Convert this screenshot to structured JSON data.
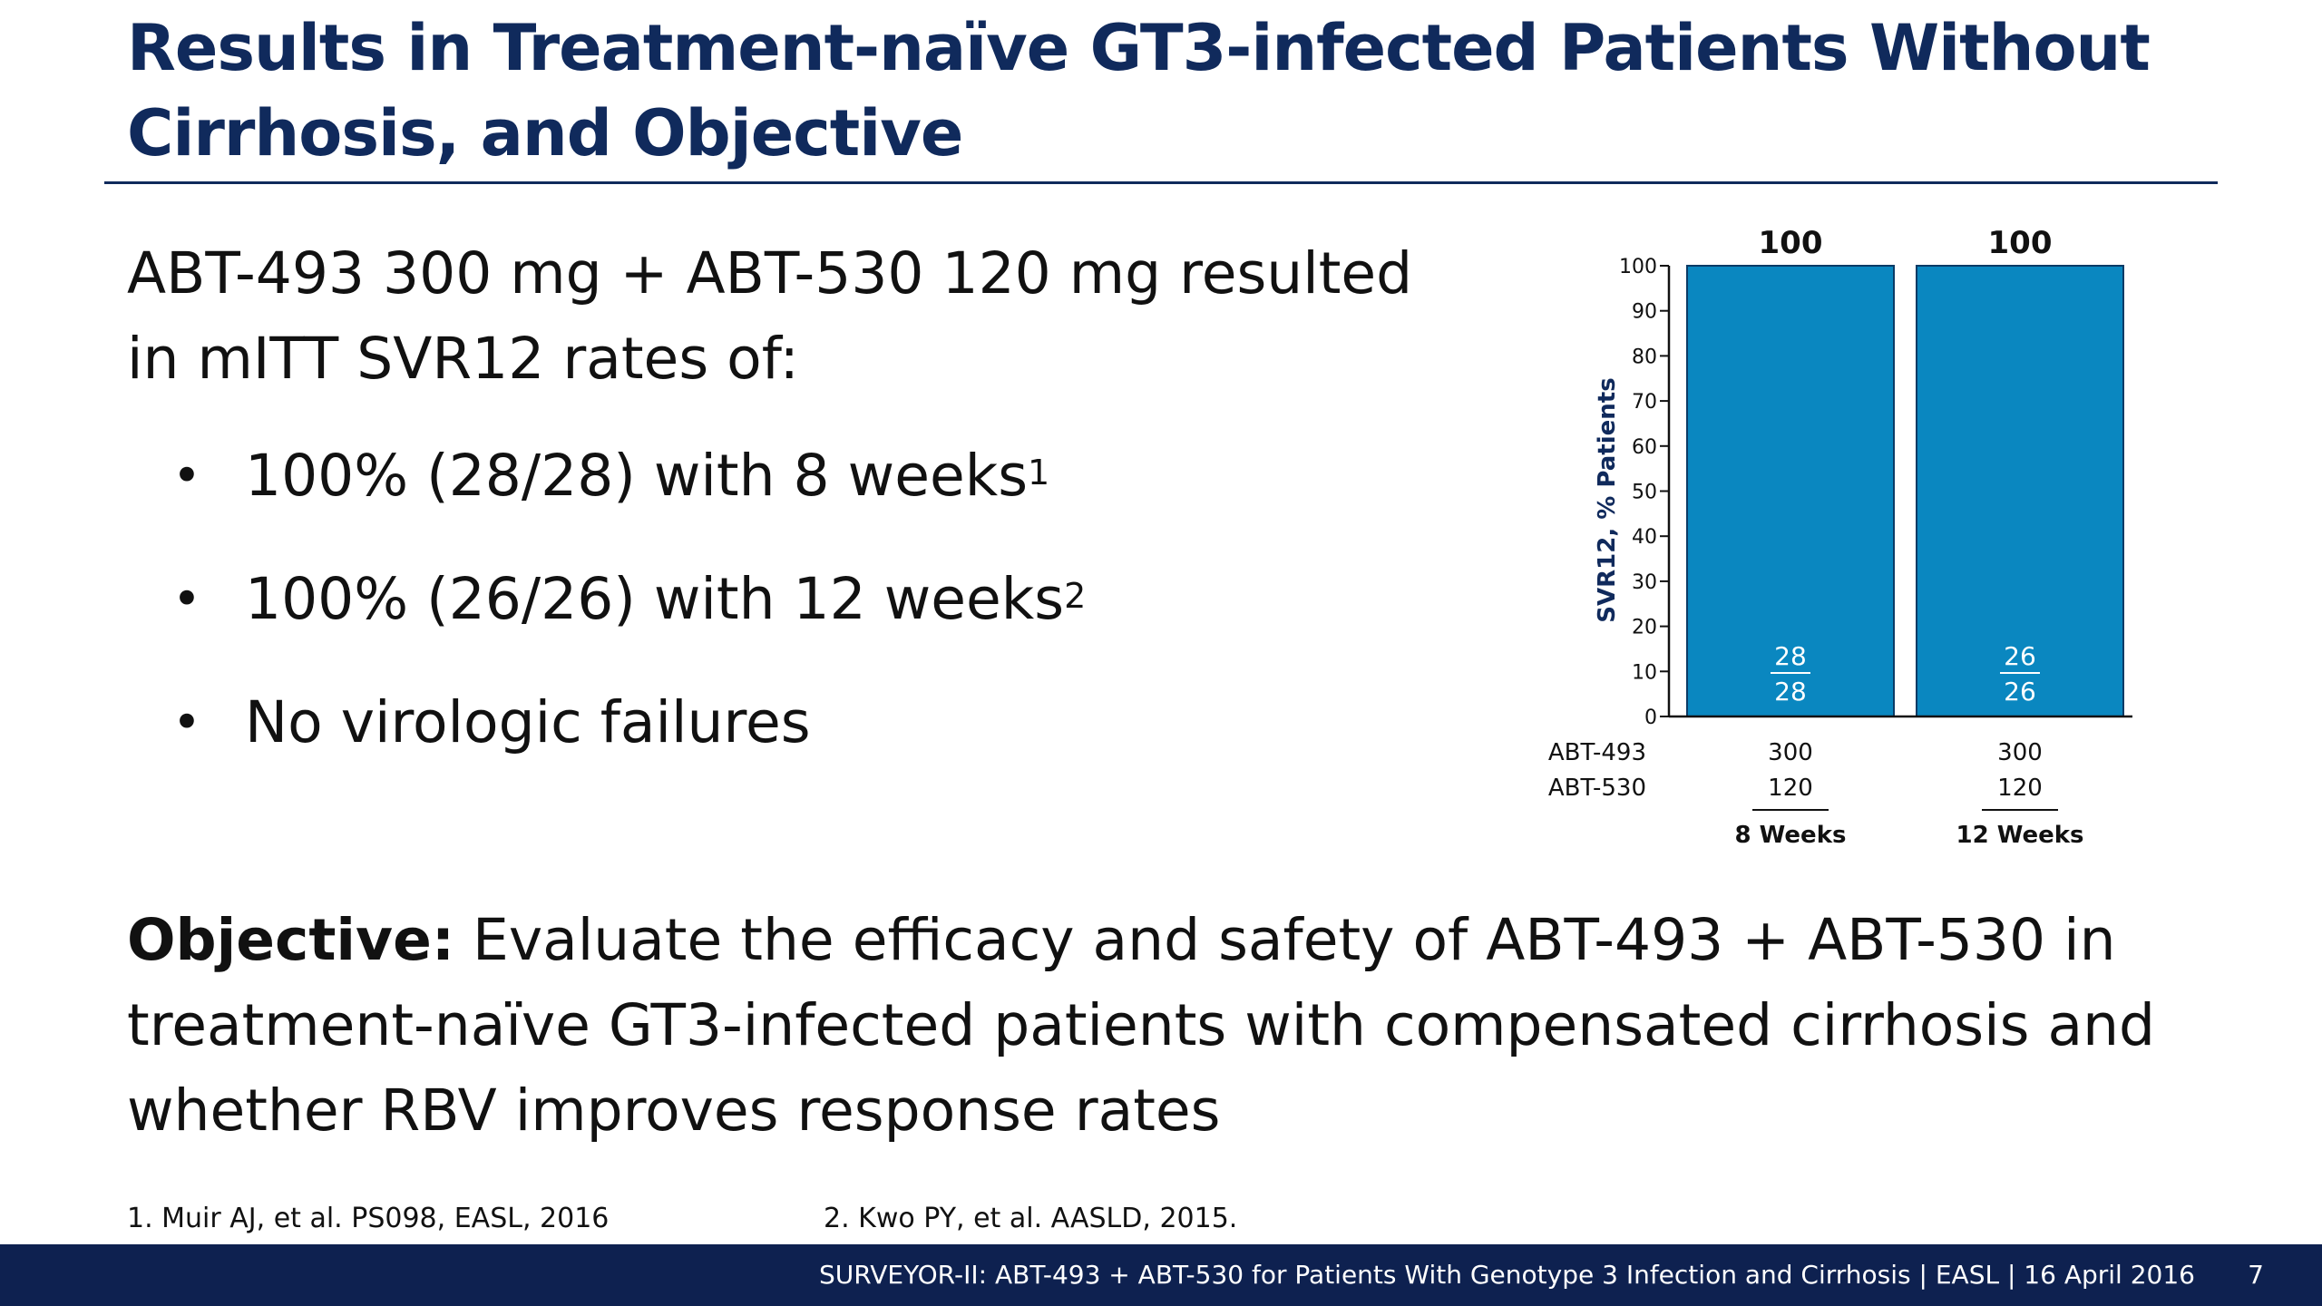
{
  "slide": {
    "title": "Results in Treatment-naïve GT3-infected Patients Without Cirrhosis, and Objective",
    "intro": "ABT-493 300 mg + ABT-530 120 mg resulted in mITT SVR12 rates of:",
    "bullets": [
      {
        "text": "100% (28/28) with 8 weeks",
        "sup": "1"
      },
      {
        "text": "100% (26/26) with 12 weeks",
        "sup": "2"
      },
      {
        "text": "No virologic failures",
        "sup": ""
      }
    ],
    "objective_label": "Objective:",
    "objective_text": " Evaluate the efficacy and safety of ABT-493 + ABT-530 in treatment-naïve GT3-infected patients with compensated cirrhosis and whether RBV improves response rates",
    "refs": [
      "1. Muir AJ, et al. PS098, EASL, 2016",
      "2. Kwo PY, et al. AASLD, 2015."
    ],
    "footer_text": "SURVEYOR-II: ABT-493 + ABT-530 for Patients With Genotype 3 Infection and Cirrhosis  | EASL | 16 April 2016",
    "page_number": "7"
  },
  "colors": {
    "title": "#102a5c",
    "bar": "#0a87c0",
    "footer": "#0e2150"
  },
  "chart_data": {
    "type": "bar",
    "categories": [
      "8 Weeks",
      "12 Weeks"
    ],
    "values": [
      100,
      100
    ],
    "value_labels": [
      "100",
      "100"
    ],
    "fractions": [
      {
        "num": "28",
        "den": "28"
      },
      {
        "num": "26",
        "den": "26"
      }
    ],
    "row_labels": [
      "ABT-493",
      "ABT-530"
    ],
    "row_values": [
      [
        "300",
        "120"
      ],
      [
        "300",
        "120"
      ]
    ],
    "ylabel": "SVR12, % Patients",
    "ylim": [
      0,
      100
    ],
    "yticks": [
      0,
      10,
      20,
      30,
      40,
      50,
      60,
      70,
      80,
      90,
      100
    ],
    "grid": false
  }
}
